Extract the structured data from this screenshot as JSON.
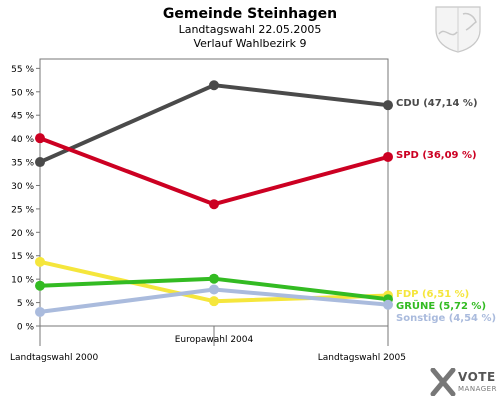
{
  "header": {
    "title": "Gemeinde Steinhagen",
    "subtitle": "Landtagswahl 22.05.2005",
    "subtitle2": "Verlauf Wahlbezirk 9"
  },
  "brand": {
    "vote": "VOTE",
    "manager": "MANAGER"
  },
  "chart_data": {
    "type": "line",
    "title": "Gemeinde Steinhagen",
    "subtitle": "Landtagswahl 22.05.2005 / Verlauf Wahlbezirk 9",
    "xlabel": "",
    "ylabel": "",
    "categories": [
      "Landtagswahl 2000",
      "Europawahl 2004",
      "Landtagswahl 2005"
    ],
    "ylim": [
      0,
      57
    ],
    "yticks": [
      0,
      5,
      10,
      15,
      20,
      25,
      30,
      35,
      40,
      45,
      50,
      55
    ],
    "ytick_labels": [
      "0 %",
      "5 %",
      "10 %",
      "15 %",
      "20 %",
      "25 %",
      "30 %",
      "35 %",
      "40 %",
      "45 %",
      "50 %",
      "55 %"
    ],
    "grid": false,
    "legend": "end-labels",
    "series": [
      {
        "name": "CDU",
        "color": "#4a4a4a",
        "values": [
          35.0,
          51.4,
          47.14
        ],
        "end_label": "CDU (47,14 %)"
      },
      {
        "name": "SPD",
        "color": "#cc0022",
        "values": [
          40.1,
          26.0,
          36.09
        ],
        "end_label": "SPD (36,09 %)"
      },
      {
        "name": "FDP",
        "color": "#f5e63c",
        "values": [
          13.7,
          5.3,
          6.51
        ],
        "end_label": "FDP (6,51 %)"
      },
      {
        "name": "GRÜNE",
        "color": "#33bb22",
        "values": [
          8.6,
          10.1,
          5.72
        ],
        "end_label": "GRÜNE (5,72 %)"
      },
      {
        "name": "Sonstige",
        "color": "#aabbdd",
        "values": [
          3.0,
          7.8,
          4.54
        ],
        "end_label": "Sonstige (4,54 %)"
      }
    ]
  }
}
